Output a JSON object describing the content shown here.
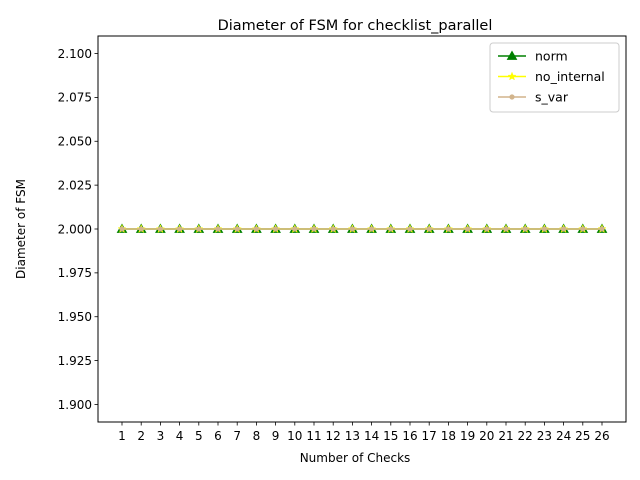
{
  "chart_data": {
    "type": "line",
    "title": "Diameter of FSM for checklist_parallel",
    "xlabel": "Number of Checks",
    "ylabel": "Diameter of FSM",
    "x": [
      1,
      2,
      3,
      4,
      5,
      6,
      7,
      8,
      9,
      10,
      11,
      12,
      13,
      14,
      15,
      16,
      17,
      18,
      19,
      20,
      21,
      22,
      23,
      24,
      25,
      26
    ],
    "xlim": [
      -0.25,
      27.25
    ],
    "ylim": [
      1.89,
      2.11
    ],
    "yticks": [
      1.9,
      1.925,
      1.95,
      1.975,
      2.0,
      2.025,
      2.05,
      2.075,
      2.1
    ],
    "ytick_labels": [
      "1.900",
      "1.925",
      "1.950",
      "1.975",
      "2.000",
      "2.025",
      "2.050",
      "2.075",
      "2.100"
    ],
    "grid": false,
    "legend_position": "top-right",
    "series": [
      {
        "name": "norm",
        "color": "#008000",
        "marker": "triangle",
        "values": [
          2,
          2,
          2,
          2,
          2,
          2,
          2,
          2,
          2,
          2,
          2,
          2,
          2,
          2,
          2,
          2,
          2,
          2,
          2,
          2,
          2,
          2,
          2,
          2,
          2,
          2
        ]
      },
      {
        "name": "no_internal",
        "color": "#ffff00",
        "marker": "star",
        "values": [
          2,
          2,
          2,
          2,
          2,
          2,
          2,
          2,
          2,
          2,
          2,
          2,
          2,
          2,
          2,
          2,
          2,
          2,
          2,
          2,
          2,
          2,
          2,
          2,
          2,
          2
        ]
      },
      {
        "name": "s_var",
        "color": "#d2b48c",
        "marker": "point",
        "values": [
          2,
          2,
          2,
          2,
          2,
          2,
          2,
          2,
          2,
          2,
          2,
          2,
          2,
          2,
          2,
          2,
          2,
          2,
          2,
          2,
          2,
          2,
          2,
          2,
          2,
          2
        ]
      }
    ]
  }
}
